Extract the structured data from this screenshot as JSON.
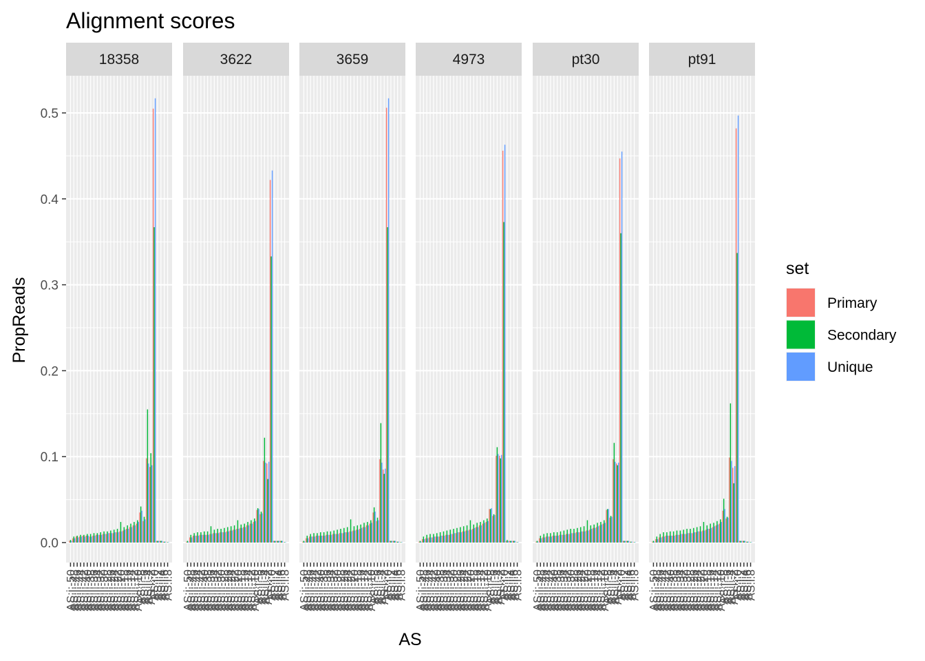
{
  "chart_data": {
    "type": "bar",
    "title": "Alignment scores",
    "xlabel": "AS",
    "ylabel": "PropReads",
    "ylim": [
      0,
      0.545
    ],
    "yticks": [
      0.0,
      0.1,
      0.2,
      0.3,
      0.4,
      0.5
    ],
    "ytick_labels": [
      "0.0",
      "0.1",
      "0.2",
      "0.3",
      "0.4",
      "0.5"
    ],
    "grid": true,
    "legend": {
      "title": "set",
      "position": "right",
      "entries": [
        {
          "name": "Primary",
          "color": "#F8766D"
        },
        {
          "name": "Secondary",
          "color": "#00BA38"
        },
        {
          "name": "Unique",
          "color": "#619CFF"
        }
      ]
    },
    "categories": [
      "AS:i:-50",
      "AS:i:-48",
      "AS:i:-46",
      "AS:i:-44",
      "AS:i:-42",
      "AS:i:-40",
      "AS:i:-38",
      "AS:i:-36",
      "AS:i:-34",
      "AS:i:-32",
      "AS:i:-30",
      "AS:i:-28",
      "AS:i:-26",
      "AS:i:-24",
      "AS:i:-22",
      "AS:i:-20",
      "AS:i:-18",
      "AS:i:-16",
      "AS:i:-14",
      "AS:i:-12",
      "AS:i:-10",
      "AS:i:-8",
      "AS:i:-6",
      "AS:i:-4",
      "AS:i:-2",
      "AS:i:0",
      "AS:i:2",
      "AS:i:4",
      "AS:i:6",
      "AS:i:8"
    ],
    "facets": [
      {
        "label": "18358",
        "series": [
          {
            "name": "Primary",
            "values": [
              0.002,
              0.005,
              0.007,
              0.007,
              0.008,
              0.008,
              0.007,
              0.008,
              0.009,
              0.009,
              0.01,
              0.01,
              0.011,
              0.011,
              0.012,
              0.013,
              0.014,
              0.016,
              0.018,
              0.02,
              0.022,
              0.035,
              0.025,
              0.098,
              0.088,
              0.505,
              0.002,
              0.002,
              0.001,
              0.0005
            ]
          },
          {
            "name": "Secondary",
            "values": [
              0.003,
              0.007,
              0.008,
              0.009,
              0.009,
              0.01,
              0.01,
              0.011,
              0.011,
              0.012,
              0.013,
              0.013,
              0.014,
              0.015,
              0.016,
              0.024,
              0.018,
              0.02,
              0.022,
              0.024,
              0.026,
              0.042,
              0.03,
              0.155,
              0.104,
              0.367,
              0.002,
              0.002,
              0.001,
              0.0005
            ]
          },
          {
            "name": "Unique",
            "values": [
              0.002,
              0.005,
              0.006,
              0.007,
              0.007,
              0.008,
              0.007,
              0.008,
              0.009,
              0.009,
              0.01,
              0.011,
              0.011,
              0.012,
              0.012,
              0.013,
              0.015,
              0.016,
              0.018,
              0.02,
              0.024,
              0.037,
              0.027,
              0.092,
              0.09,
              0.517,
              0.002,
              0.002,
              0.001,
              0.0005
            ]
          }
        ]
      },
      {
        "label": "3622",
        "series": [
          {
            "name": "Primary",
            "values": [
              0.001,
              0.006,
              0.008,
              0.008,
              0.009,
              0.009,
              0.009,
              0.01,
              0.011,
              0.011,
              0.012,
              0.012,
              0.013,
              0.014,
              0.015,
              0.016,
              0.017,
              0.018,
              0.02,
              0.022,
              0.024,
              0.038,
              0.033,
              0.095,
              0.092,
              0.422,
              0.002,
              0.002,
              0.002,
              0.0005
            ]
          },
          {
            "name": "Secondary",
            "values": [
              0.002,
              0.009,
              0.011,
              0.012,
              0.012,
              0.013,
              0.013,
              0.019,
              0.015,
              0.016,
              0.016,
              0.017,
              0.018,
              0.019,
              0.02,
              0.026,
              0.021,
              0.022,
              0.024,
              0.026,
              0.028,
              0.04,
              0.036,
              0.122,
              0.074,
              0.333,
              0.002,
              0.002,
              0.002,
              0.0005
            ]
          },
          {
            "name": "Unique",
            "values": [
              0.001,
              0.006,
              0.008,
              0.008,
              0.009,
              0.009,
              0.009,
              0.01,
              0.011,
              0.011,
              0.012,
              0.012,
              0.013,
              0.014,
              0.015,
              0.016,
              0.017,
              0.018,
              0.02,
              0.022,
              0.025,
              0.039,
              0.034,
              0.093,
              0.094,
              0.433,
              0.002,
              0.002,
              0.002,
              0.0005
            ]
          }
        ]
      },
      {
        "label": "3659",
        "series": [
          {
            "name": "Primary",
            "values": [
              0.001,
              0.005,
              0.007,
              0.007,
              0.008,
              0.008,
              0.008,
              0.009,
              0.009,
              0.01,
              0.01,
              0.011,
              0.011,
              0.012,
              0.013,
              0.014,
              0.015,
              0.016,
              0.018,
              0.02,
              0.022,
              0.035,
              0.025,
              0.097,
              0.085,
              0.506,
              0.002,
              0.002,
              0.001,
              0.0005
            ]
          },
          {
            "name": "Secondary",
            "values": [
              0.002,
              0.008,
              0.01,
              0.011,
              0.011,
              0.012,
              0.012,
              0.013,
              0.013,
              0.014,
              0.015,
              0.016,
              0.017,
              0.018,
              0.027,
              0.019,
              0.02,
              0.021,
              0.023,
              0.024,
              0.026,
              0.041,
              0.029,
              0.139,
              0.08,
              0.367,
              0.002,
              0.002,
              0.001,
              0.0005
            ]
          },
          {
            "name": "Unique",
            "values": [
              0.001,
              0.005,
              0.007,
              0.007,
              0.008,
              0.008,
              0.008,
              0.009,
              0.009,
              0.01,
              0.01,
              0.011,
              0.012,
              0.012,
              0.013,
              0.014,
              0.015,
              0.017,
              0.018,
              0.02,
              0.023,
              0.036,
              0.026,
              0.093,
              0.086,
              0.517,
              0.002,
              0.002,
              0.001,
              0.0005
            ]
          }
        ]
      },
      {
        "label": "4973",
        "series": [
          {
            "name": "Primary",
            "values": [
              0.001,
              0.004,
              0.005,
              0.006,
              0.006,
              0.007,
              0.007,
              0.008,
              0.009,
              0.009,
              0.01,
              0.011,
              0.012,
              0.013,
              0.014,
              0.015,
              0.016,
              0.018,
              0.02,
              0.022,
              0.024,
              0.039,
              0.031,
              0.101,
              0.101,
              0.456,
              0.002,
              0.002,
              0.002,
              0.0005
            ]
          },
          {
            "name": "Secondary",
            "values": [
              0.002,
              0.007,
              0.009,
              0.01,
              0.01,
              0.011,
              0.012,
              0.013,
              0.014,
              0.015,
              0.016,
              0.017,
              0.018,
              0.019,
              0.02,
              0.026,
              0.021,
              0.023,
              0.024,
              0.026,
              0.028,
              0.039,
              0.033,
              0.111,
              0.098,
              0.373,
              0.003,
              0.002,
              0.002,
              0.0005
            ]
          },
          {
            "name": "Unique",
            "values": [
              0.001,
              0.004,
              0.005,
              0.006,
              0.007,
              0.007,
              0.008,
              0.008,
              0.009,
              0.01,
              0.011,
              0.012,
              0.012,
              0.013,
              0.014,
              0.015,
              0.017,
              0.018,
              0.02,
              0.023,
              0.025,
              0.04,
              0.032,
              0.103,
              0.102,
              0.463,
              0.002,
              0.002,
              0.002,
              0.0005
            ]
          }
        ]
      },
      {
        "label": "pt30",
        "series": [
          {
            "name": "Primary",
            "values": [
              0.001,
              0.005,
              0.006,
              0.007,
              0.007,
              0.008,
              0.008,
              0.009,
              0.009,
              0.01,
              0.01,
              0.011,
              0.012,
              0.012,
              0.013,
              0.014,
              0.015,
              0.017,
              0.018,
              0.02,
              0.022,
              0.038,
              0.029,
              0.097,
              0.092,
              0.447,
              0.002,
              0.002,
              0.001,
              0.0005
            ]
          },
          {
            "name": "Secondary",
            "values": [
              0.002,
              0.008,
              0.01,
              0.011,
              0.011,
              0.012,
              0.012,
              0.013,
              0.014,
              0.015,
              0.016,
              0.016,
              0.017,
              0.018,
              0.019,
              0.026,
              0.02,
              0.021,
              0.023,
              0.024,
              0.026,
              0.039,
              0.031,
              0.116,
              0.09,
              0.36,
              0.002,
              0.002,
              0.001,
              0.0005
            ]
          },
          {
            "name": "Unique",
            "values": [
              0.001,
              0.005,
              0.006,
              0.007,
              0.007,
              0.008,
              0.008,
              0.009,
              0.009,
              0.01,
              0.011,
              0.011,
              0.012,
              0.013,
              0.013,
              0.014,
              0.016,
              0.017,
              0.019,
              0.021,
              0.023,
              0.039,
              0.03,
              0.094,
              0.093,
              0.455,
              0.002,
              0.002,
              0.001,
              0.0005
            ]
          }
        ]
      },
      {
        "label": "pt91",
        "series": [
          {
            "name": "Primary",
            "values": [
              0.001,
              0.004,
              0.006,
              0.007,
              0.008,
              0.008,
              0.008,
              0.009,
              0.009,
              0.01,
              0.01,
              0.011,
              0.011,
              0.012,
              0.013,
              0.014,
              0.015,
              0.016,
              0.018,
              0.02,
              0.022,
              0.037,
              0.028,
              0.099,
              0.087,
              0.482,
              0.002,
              0.002,
              0.001,
              0.0005
            ]
          },
          {
            "name": "Secondary",
            "values": [
              0.002,
              0.007,
              0.01,
              0.012,
              0.012,
              0.013,
              0.013,
              0.014,
              0.014,
              0.015,
              0.016,
              0.016,
              0.017,
              0.018,
              0.019,
              0.024,
              0.02,
              0.022,
              0.023,
              0.025,
              0.027,
              0.051,
              0.03,
              0.162,
              0.069,
              0.337,
              0.002,
              0.002,
              0.001,
              0.0005
            ]
          },
          {
            "name": "Unique",
            "values": [
              0.001,
              0.004,
              0.006,
              0.007,
              0.008,
              0.008,
              0.008,
              0.009,
              0.01,
              0.01,
              0.011,
              0.011,
              0.012,
              0.013,
              0.013,
              0.014,
              0.016,
              0.017,
              0.019,
              0.021,
              0.024,
              0.039,
              0.029,
              0.095,
              0.089,
              0.497,
              0.002,
              0.002,
              0.001,
              0.0005
            ]
          }
        ]
      }
    ]
  }
}
